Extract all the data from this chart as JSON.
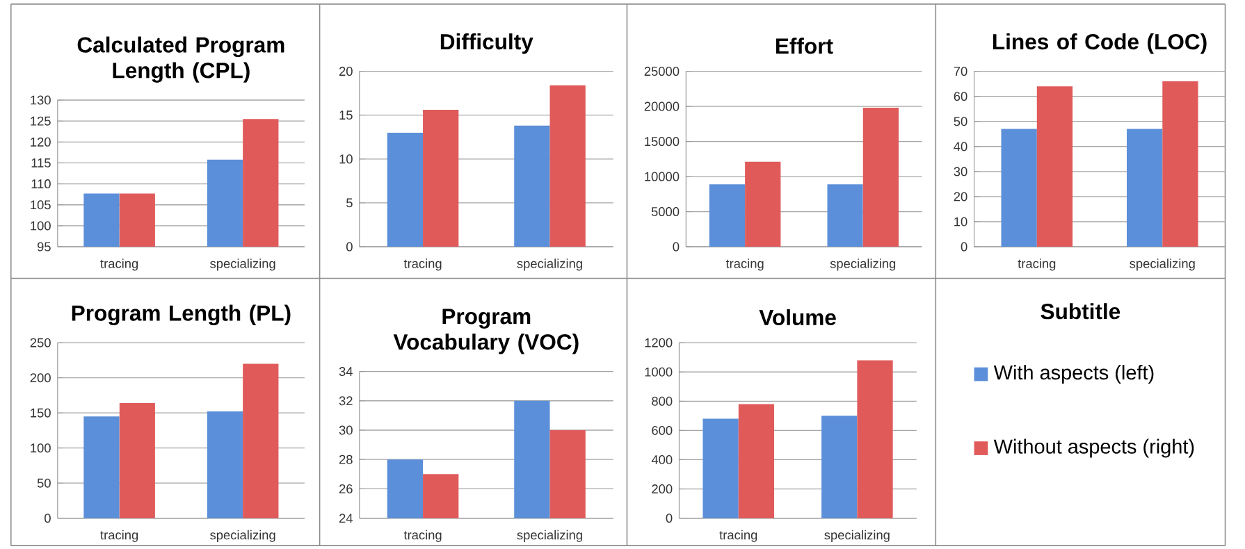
{
  "chart_data": [
    {
      "type": "bar",
      "title": "Calculated Program Length (CPL)",
      "categories": [
        "tracing",
        "specializing"
      ],
      "series": [
        {
          "color": "#5b8fd9",
          "values": [
            107.7,
            115.8
          ]
        },
        {
          "color": "#e05a5a",
          "values": [
            107.7,
            125.5
          ]
        }
      ],
      "ylim": [
        95,
        130
      ],
      "yticks": [
        95,
        100,
        105,
        110,
        115,
        120,
        125,
        130
      ],
      "grid": "y"
    },
    {
      "type": "bar",
      "title": "Difficulty",
      "categories": [
        "tracing",
        "specializing"
      ],
      "series": [
        {
          "color": "#5b8fd9",
          "values": [
            13,
            13.8
          ]
        },
        {
          "color": "#e05a5a",
          "values": [
            15.6,
            18.4
          ]
        }
      ],
      "ylim": [
        0,
        20
      ],
      "yticks": [
        0,
        5,
        10,
        15,
        20
      ],
      "grid": "y"
    },
    {
      "type": "bar",
      "title": "Effort",
      "categories": [
        "tracing",
        "specializing"
      ],
      "series": [
        {
          "color": "#5b8fd9",
          "values": [
            8900,
            8900
          ]
        },
        {
          "color": "#e05a5a",
          "values": [
            12100,
            19800
          ]
        }
      ],
      "ylim": [
        0,
        25000
      ],
      "yticks": [
        0,
        5000,
        10000,
        15000,
        20000,
        25000
      ],
      "grid": "y"
    },
    {
      "type": "bar",
      "title": "Lines of Code (LOC)",
      "categories": [
        "tracing",
        "specializing"
      ],
      "series": [
        {
          "color": "#5b8fd9",
          "values": [
            47,
            47
          ]
        },
        {
          "color": "#e05a5a",
          "values": [
            64,
            66
          ]
        }
      ],
      "ylim": [
        0,
        70
      ],
      "yticks": [
        0,
        10,
        20,
        30,
        40,
        50,
        60,
        70
      ],
      "grid": "y"
    },
    {
      "type": "bar",
      "title": "Program Length (PL)",
      "categories": [
        "tracing",
        "specializing"
      ],
      "series": [
        {
          "color": "#5b8fd9",
          "values": [
            145,
            152
          ]
        },
        {
          "color": "#e05a5a",
          "values": [
            164,
            220
          ]
        }
      ],
      "ylim": [
        0,
        250
      ],
      "yticks": [
        0,
        50,
        100,
        150,
        200,
        250
      ],
      "grid": "y"
    },
    {
      "type": "bar",
      "title": "Program Vocabulary (VOC)",
      "categories": [
        "tracing",
        "specializing"
      ],
      "series": [
        {
          "color": "#5b8fd9",
          "values": [
            28,
            32
          ]
        },
        {
          "color": "#e05a5a",
          "values": [
            27,
            30
          ]
        }
      ],
      "ylim": [
        24,
        34
      ],
      "yticks": [
        24,
        26,
        28,
        30,
        32,
        34
      ],
      "grid": "y"
    },
    {
      "type": "bar",
      "title": "Volume",
      "categories": [
        "tracing",
        "specializing"
      ],
      "series": [
        {
          "color": "#5b8fd9",
          "values": [
            680,
            700
          ]
        },
        {
          "color": "#e05a5a",
          "values": [
            780,
            1080
          ]
        }
      ],
      "ylim": [
        0,
        1200
      ],
      "yticks": [
        0,
        200,
        400,
        600,
        800,
        1000,
        1200
      ],
      "grid": "y"
    },
    {
      "type": "other",
      "title": "Subtitle",
      "legend": "left",
      "series": [
        {
          "name": "With aspects (left)",
          "color": "#5b8fd9"
        },
        {
          "name": "Without aspects (right)",
          "color": "#e05a5a"
        }
      ]
    }
  ]
}
